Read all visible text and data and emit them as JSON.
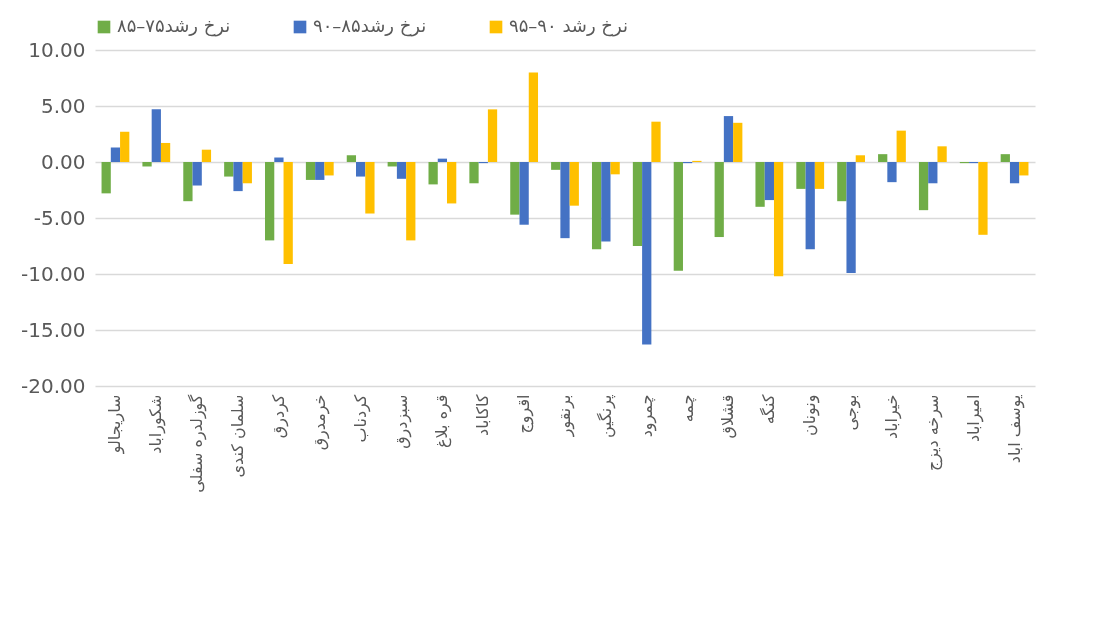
{
  "chart_data": {
    "type": "bar",
    "categories": [
      "ساریجالو",
      "شکوراباد",
      "گوزلدره سفلی",
      "سلمان کندی",
      "کردرق",
      "خرمدرق",
      "کردناب",
      "سبزدرق",
      "قره بلاغ",
      "کاکاباد",
      "اقروج",
      "برنقور",
      "پرنگین",
      "چمرود",
      "چمه",
      "قشلاق",
      "کنگه",
      "ونونان",
      "بوجی",
      "خیراباد",
      "سرخه دیزج",
      "امیراباد",
      "یوسف اباد"
    ],
    "series": [
      {
        "name": "نرخ رشد۷۵–۸۵",
        "color": "#70ad47",
        "values": [
          -2.8,
          -0.4,
          -3.5,
          -1.3,
          -7.0,
          -1.6,
          0.6,
          -0.4,
          -2.0,
          -1.9,
          -4.7,
          -0.7,
          -7.8,
          -7.5,
          -9.7,
          -6.7,
          -4.0,
          -2.4,
          -3.5,
          0.7,
          -4.3,
          -0.1,
          0.7
        ]
      },
      {
        "name": "نرخ رشد۸۵–۹۰",
        "color": "#4472c4",
        "values": [
          1.3,
          4.7,
          -2.1,
          -2.6,
          0.4,
          -1.6,
          -1.3,
          -1.5,
          0.3,
          -0.1,
          -5.6,
          -6.8,
          -7.1,
          -16.3,
          -0.1,
          4.1,
          -3.4,
          -7.8,
          -9.9,
          -1.8,
          -1.9,
          -0.1,
          -1.9
        ]
      },
      {
        "name": "نرخ رشد ۹۰–۹۵",
        "color": "#ffc000",
        "values": [
          2.7,
          1.7,
          1.1,
          -1.9,
          -9.1,
          -1.2,
          -4.6,
          -7.0,
          -3.7,
          4.7,
          8.0,
          -3.9,
          -1.1,
          3.6,
          0.1,
          3.5,
          -10.2,
          -2.4,
          0.6,
          2.8,
          1.4,
          -6.5,
          -1.2
        ]
      }
    ],
    "ylim": [
      -20,
      10
    ],
    "yticks": [
      {
        "value": -20,
        "label": "-20.00"
      },
      {
        "value": -15,
        "label": "-15.00"
      },
      {
        "value": -10,
        "label": "-10.00"
      },
      {
        "value": -5,
        "label": "-5.00"
      },
      {
        "value": 0,
        "label": "0.00"
      },
      {
        "value": 5,
        "label": "5.00"
      },
      {
        "value": 10,
        "label": "10.00"
      }
    ],
    "grid": "y",
    "legend": "top"
  }
}
